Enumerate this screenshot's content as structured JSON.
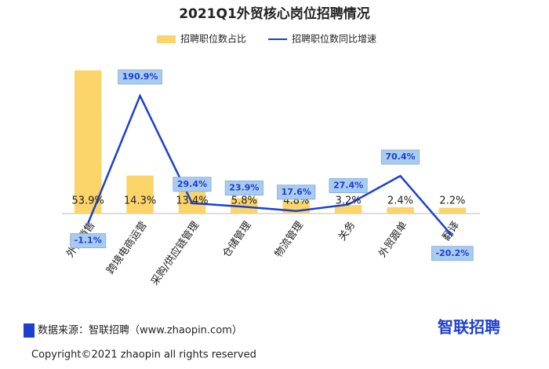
{
  "chart_data": {
    "type": "bar",
    "title": "2021Q1外贸核心岗位招聘情况",
    "categories": [
      "外贸销售",
      "跨境电商运营",
      "采购/供应链管理",
      "仓储管理",
      "物流管理",
      "关务",
      "外贸跟单",
      "翻译"
    ],
    "series": [
      {
        "name": "招聘职位数占比",
        "type": "bar",
        "color": "#fbd46a",
        "values": [
          53.9,
          14.3,
          13.4,
          5.8,
          4.8,
          3.2,
          2.4,
          2.2
        ],
        "value_labels": [
          "53.9%",
          "14.3%",
          "13.4%",
          "5.8%",
          "4.8%",
          "3.2%",
          "2.4%",
          "2.2%"
        ]
      },
      {
        "name": "招聘职位数同比增速",
        "type": "line",
        "axis": "y2",
        "color": "#1c3fd0",
        "values": [
          -1.1,
          190.9,
          29.4,
          23.9,
          17.6,
          27.4,
          70.4,
          -20.2
        ],
        "value_labels": [
          "-1.1%",
          "190.9%",
          "29.4%",
          "23.9%",
          "17.6%",
          "27.4%",
          "70.4%",
          "-20.2%"
        ]
      }
    ],
    "ylim": [
      0,
      60
    ],
    "y2lim": [
      -50,
      250
    ],
    "legend": "top"
  },
  "source": "数据来源：智联招聘（www.zhaopin.com）",
  "logo": "智联招聘",
  "copyright": "Copyright©2021 zhaopin all rights reserved"
}
